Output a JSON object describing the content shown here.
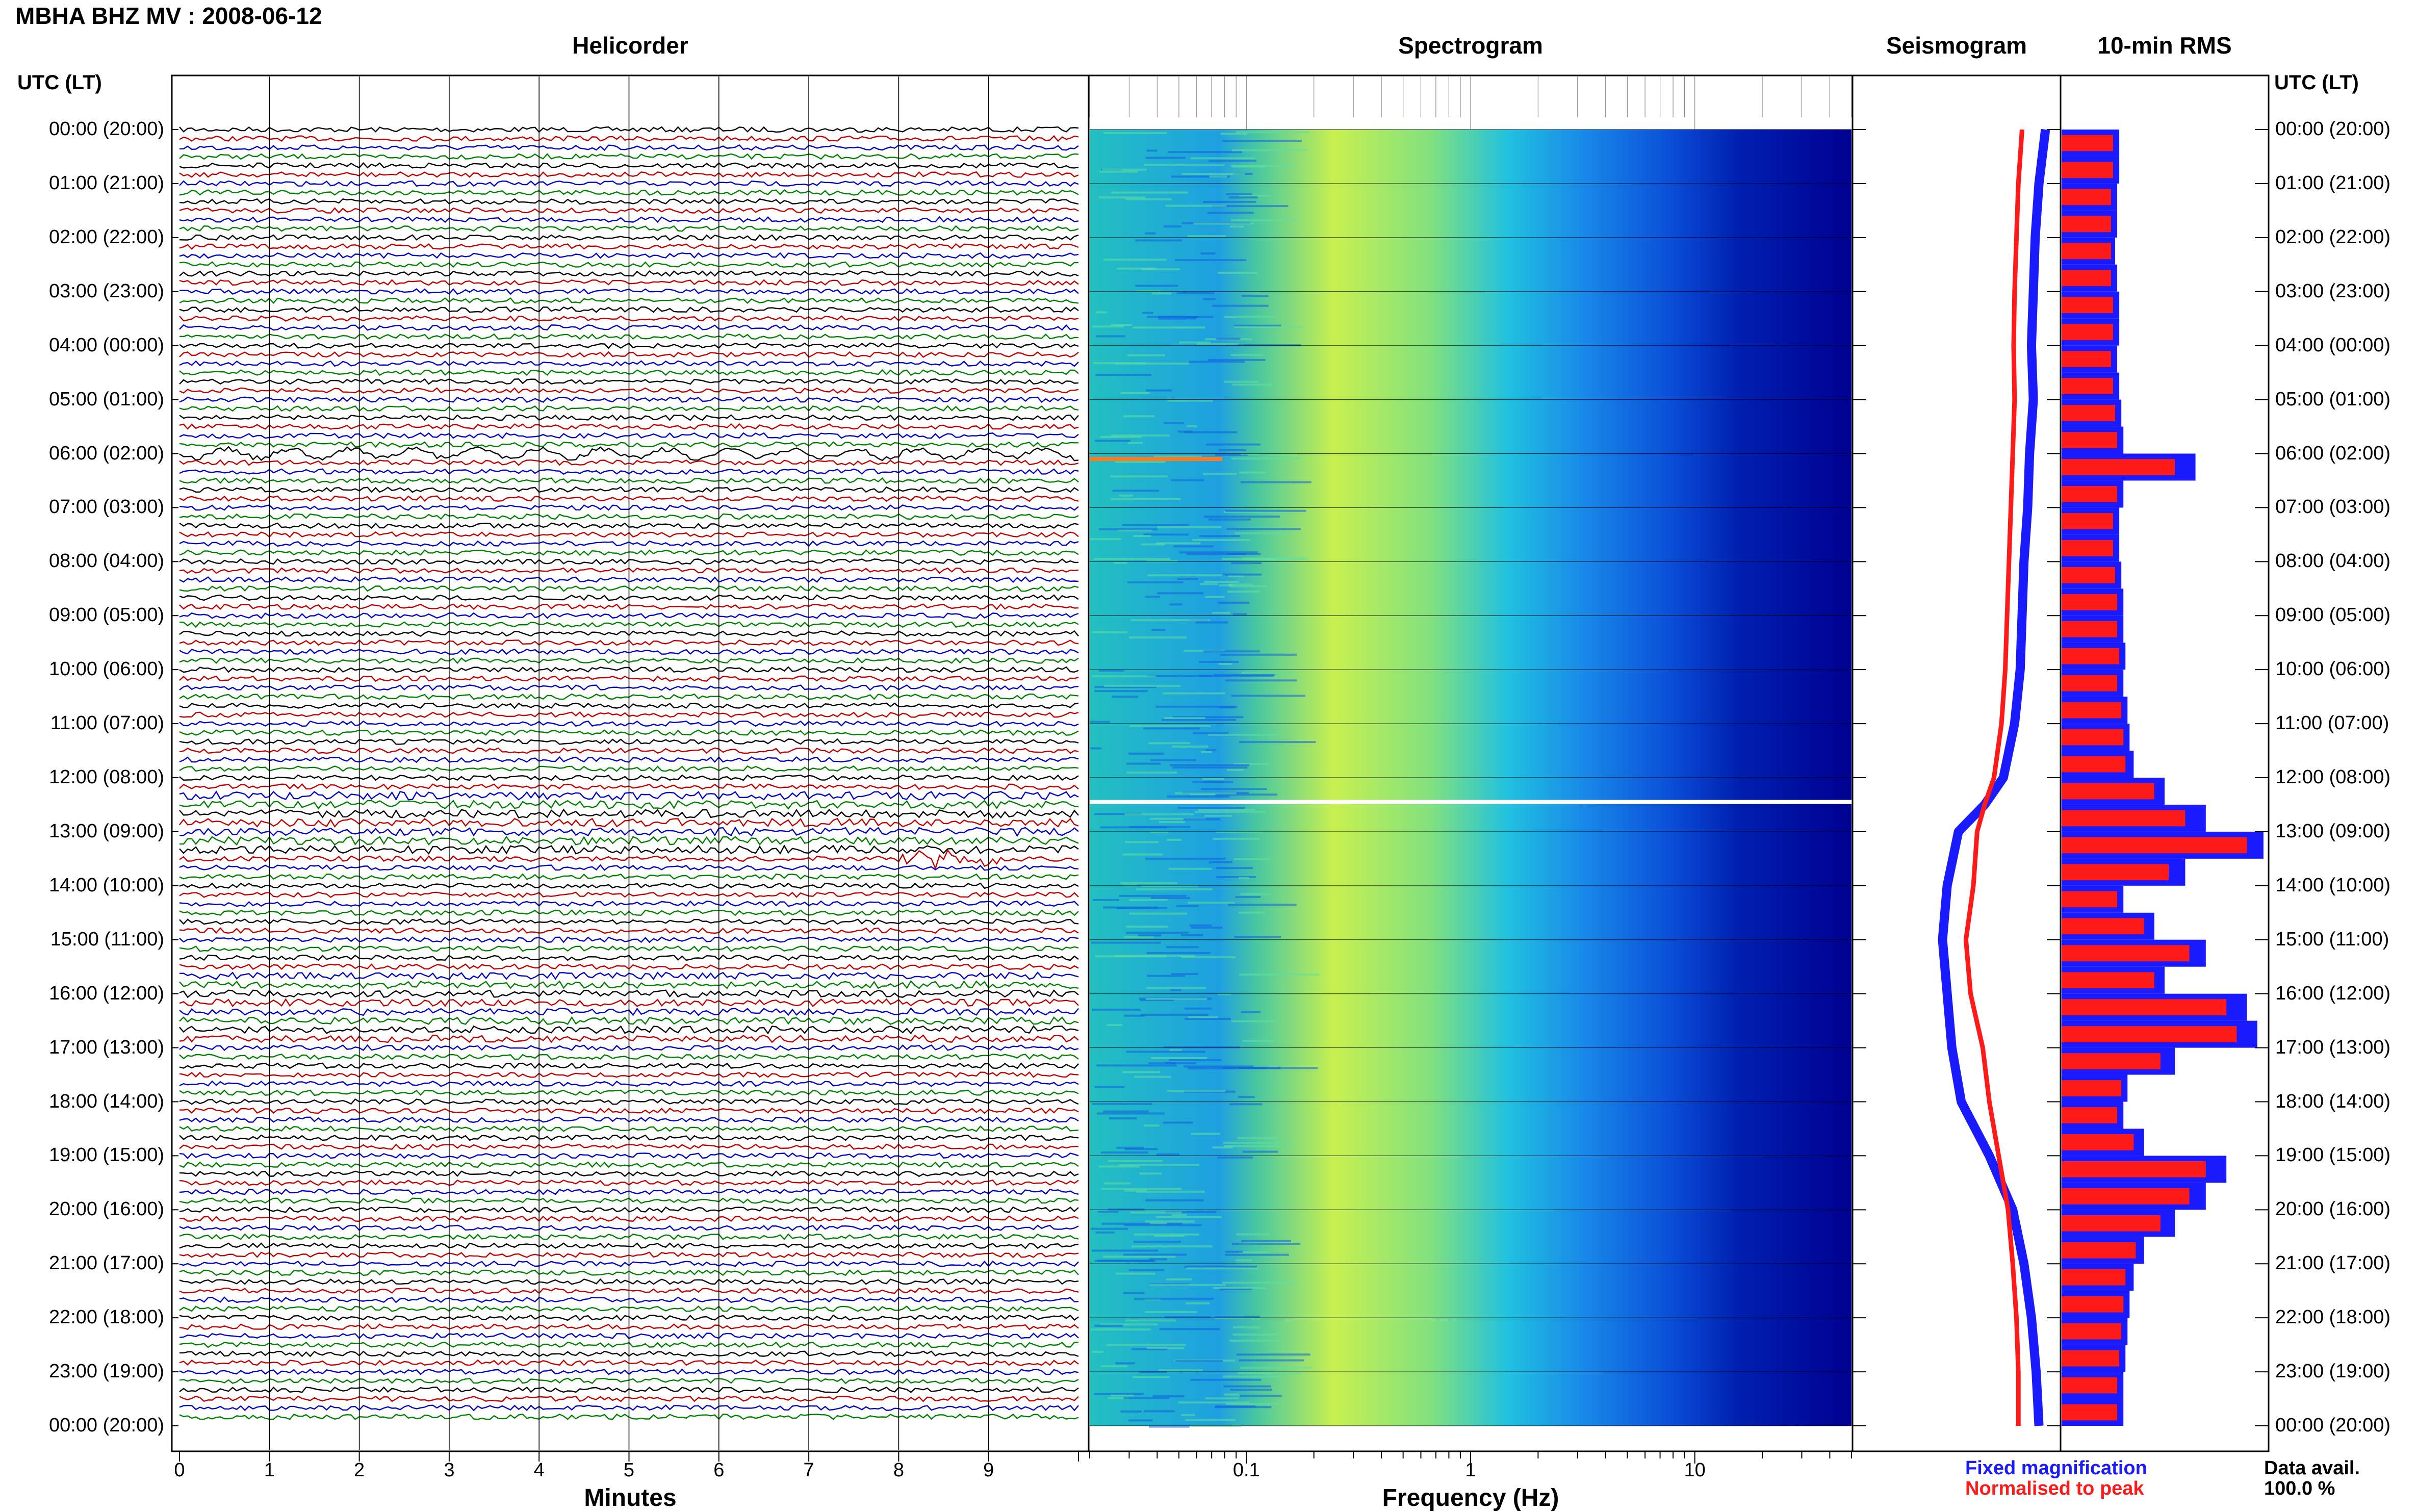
{
  "title": "MBHA BHZ MV : 2008-06-12",
  "panels": {
    "helicorder": "Helicorder",
    "spectrogram": "Spectrogram",
    "seismogram": "Seismogram",
    "rms": "10-min RMS"
  },
  "axes": {
    "utc_header_left": "UTC (LT)",
    "utc_header_right": "UTC (LT)",
    "minutes_label": "Minutes",
    "frequency_label": "Frequency (Hz)"
  },
  "time_labels": [
    "00:00 (20:00)",
    "01:00 (21:00)",
    "02:00 (22:00)",
    "03:00 (23:00)",
    "04:00 (00:00)",
    "05:00 (01:00)",
    "06:00 (02:00)",
    "07:00 (03:00)",
    "08:00 (04:00)",
    "09:00 (05:00)",
    "10:00 (06:00)",
    "11:00 (07:00)",
    "12:00 (08:00)",
    "13:00 (09:00)",
    "14:00 (10:00)",
    "15:00 (11:00)",
    "16:00 (12:00)",
    "17:00 (13:00)",
    "18:00 (14:00)",
    "19:00 (15:00)",
    "20:00 (16:00)",
    "21:00 (17:00)",
    "22:00 (18:00)",
    "23:00 (19:00)",
    "00:00 (20:00)"
  ],
  "minute_ticks": [
    "0",
    "1",
    "2",
    "3",
    "4",
    "5",
    "6",
    "7",
    "8",
    "9"
  ],
  "freq_ticks": [
    "0.1",
    "1",
    "10"
  ],
  "legend": {
    "fixed": "Fixed magnification",
    "normalised": "Normalised to peak",
    "fixed_color": "#1a1aff",
    "normalised_color": "#ff1a1a"
  },
  "data_availability": {
    "label": "Data avail.",
    "value": "100.0 %"
  },
  "colors": {
    "helicorder_traces": [
      "#000000",
      "#c00000",
      "#0000c0",
      "#008000"
    ],
    "spectrogram_low": "#00008b",
    "spectrogram_mid": "#00bfff",
    "spectrogram_high": "#ffff33"
  },
  "chart_data": [
    {
      "type": "line",
      "name": "helicorder",
      "x_unit": "minutes",
      "xlim": [
        0,
        10
      ],
      "rows": 144,
      "row_minutes": 10,
      "note_events_minutes": [
        {
          "hour": 6.05,
          "minute_start": 0.0,
          "minute_end": 10.0,
          "kind": "long-period oscillation"
        },
        {
          "hour": 13.55,
          "minute_start": 8.0,
          "minute_end": 9.1,
          "kind": "burst"
        }
      ]
    },
    {
      "type": "heatmap",
      "name": "spectrogram",
      "x_scale": "log",
      "xlim": [
        0.02,
        50
      ],
      "hours": [
        0,
        24
      ],
      "bright_lines_hours": [
        6.1,
        12.45
      ]
    },
    {
      "type": "line",
      "name": "seismogram",
      "series": [
        {
          "name": "Fixed magnification",
          "hours": [
            0,
            1,
            2,
            3,
            4,
            5,
            6,
            7,
            8,
            9,
            10,
            11,
            12,
            12.5,
            13,
            14,
            15,
            16,
            17,
            18,
            19,
            20,
            21,
            22,
            23,
            24
          ],
          "values": [
            0.95,
            0.88,
            0.84,
            0.82,
            0.8,
            0.82,
            0.78,
            0.76,
            0.72,
            0.7,
            0.68,
            0.62,
            0.5,
            0.3,
            0.02,
            -0.1,
            -0.15,
            -0.1,
            -0.05,
            0.05,
            0.35,
            0.6,
            0.72,
            0.8,
            0.85,
            0.88
          ]
        },
        {
          "name": "Normalised to peak",
          "hours": [
            0,
            1,
            2,
            3,
            4,
            5,
            6,
            7,
            8,
            9,
            10,
            11,
            12,
            12.5,
            13,
            14,
            15,
            16,
            17,
            18,
            19,
            20,
            21,
            22,
            23,
            24
          ],
          "values": [
            0.7,
            0.66,
            0.64,
            0.62,
            0.61,
            0.62,
            0.6,
            0.58,
            0.56,
            0.54,
            0.52,
            0.48,
            0.4,
            0.3,
            0.22,
            0.18,
            0.1,
            0.15,
            0.28,
            0.35,
            0.45,
            0.55,
            0.6,
            0.64,
            0.66,
            0.66
          ]
        }
      ]
    },
    {
      "type": "bar",
      "name": "10-min RMS",
      "hours": [
        0,
        0.5,
        1,
        1.5,
        2,
        2.5,
        3,
        3.5,
        4,
        4.5,
        5,
        5.5,
        6,
        6.5,
        7,
        7.5,
        8,
        8.5,
        9,
        9.5,
        10,
        10.5,
        11,
        11.5,
        12,
        12.5,
        13,
        13.5,
        14,
        14.5,
        15,
        15.5,
        16,
        16.5,
        17,
        17.5,
        18,
        18.5,
        19,
        19.5,
        20,
        20.5,
        21,
        21.5,
        22,
        22.5,
        23,
        23.5
      ],
      "fixed_values": [
        0.28,
        0.28,
        0.27,
        0.27,
        0.26,
        0.27,
        0.28,
        0.28,
        0.27,
        0.28,
        0.29,
        0.3,
        0.65,
        0.3,
        0.28,
        0.28,
        0.29,
        0.3,
        0.3,
        0.31,
        0.3,
        0.32,
        0.33,
        0.35,
        0.5,
        0.7,
        0.98,
        0.6,
        0.3,
        0.45,
        0.7,
        0.5,
        0.9,
        0.95,
        0.55,
        0.32,
        0.3,
        0.4,
        0.8,
        0.7,
        0.55,
        0.4,
        0.35,
        0.33,
        0.32,
        0.31,
        0.3,
        0.3
      ],
      "normalised_values": [
        0.25,
        0.25,
        0.24,
        0.24,
        0.24,
        0.24,
        0.25,
        0.25,
        0.24,
        0.25,
        0.26,
        0.27,
        0.55,
        0.27,
        0.25,
        0.25,
        0.26,
        0.27,
        0.27,
        0.28,
        0.27,
        0.29,
        0.3,
        0.31,
        0.45,
        0.6,
        0.9,
        0.52,
        0.27,
        0.4,
        0.62,
        0.45,
        0.8,
        0.85,
        0.48,
        0.29,
        0.27,
        0.35,
        0.7,
        0.62,
        0.48,
        0.36,
        0.31,
        0.3,
        0.29,
        0.28,
        0.27,
        0.27
      ]
    }
  ]
}
